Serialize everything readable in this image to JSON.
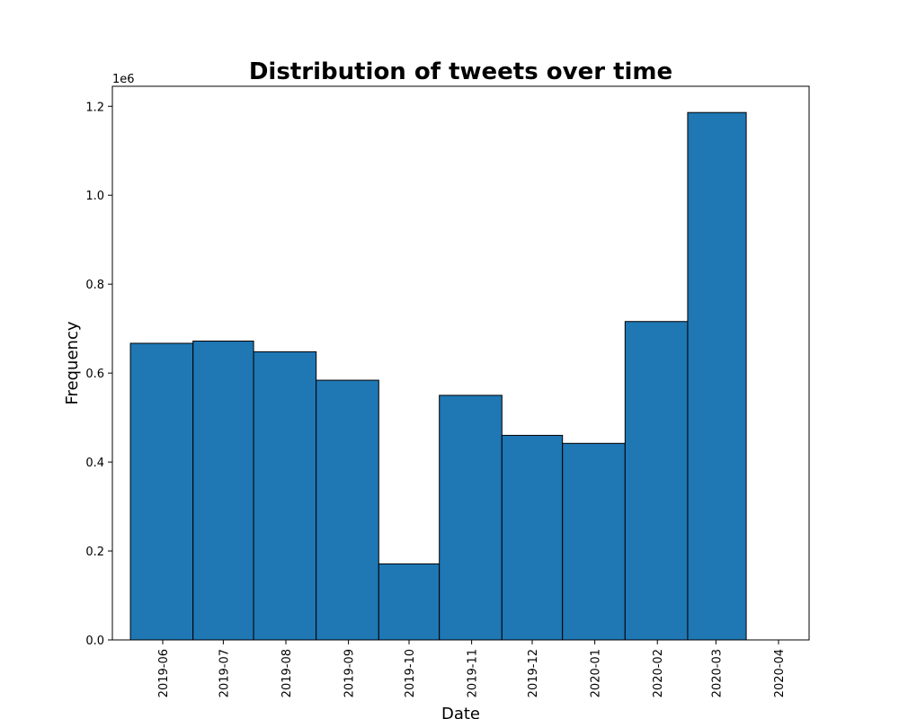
{
  "chart_data": {
    "type": "bar",
    "title": "Distribution of tweets over time",
    "xlabel": "Date",
    "ylabel": "Frequency",
    "y_offset_label": "1e6",
    "bar_color": "#1f77b4",
    "edge_color": "#000000",
    "x_tick_labels": [
      "2019-06",
      "2019-07",
      "2019-08",
      "2019-09",
      "2019-10",
      "2019-11",
      "2019-12",
      "2020-01",
      "2020-02",
      "2020-03",
      "2020-04"
    ],
    "y_ticks": [
      0.0,
      0.2,
      0.4,
      0.6,
      0.8,
      1.0,
      1.2
    ],
    "y_tick_labels": [
      "0.0",
      "0.2",
      "0.4",
      "0.6",
      "0.8",
      "1.0",
      "1.2"
    ],
    "ylim": [
      0,
      1.245
    ],
    "y_unit_multiplier": 1000000,
    "bins": [
      {
        "start": "2019-05-16",
        "end": "2019-06-16",
        "value": 0.667
      },
      {
        "start": "2019-06-16",
        "end": "2019-07-16",
        "value": 0.672
      },
      {
        "start": "2019-07-16",
        "end": "2019-08-16",
        "value": 0.648
      },
      {
        "start": "2019-08-16",
        "end": "2019-09-16",
        "value": 0.584
      },
      {
        "start": "2019-09-16",
        "end": "2019-10-16",
        "value": 0.171
      },
      {
        "start": "2019-10-16",
        "end": "2019-11-16",
        "value": 0.55
      },
      {
        "start": "2019-11-16",
        "end": "2019-12-16",
        "value": 0.46
      },
      {
        "start": "2019-12-16",
        "end": "2020-01-16",
        "value": 0.442
      },
      {
        "start": "2020-01-16",
        "end": "2020-02-16",
        "value": 0.716
      },
      {
        "start": "2020-02-16",
        "end": "2020-03-16",
        "value": 1.186
      }
    ],
    "grid": false,
    "legend": "none"
  }
}
